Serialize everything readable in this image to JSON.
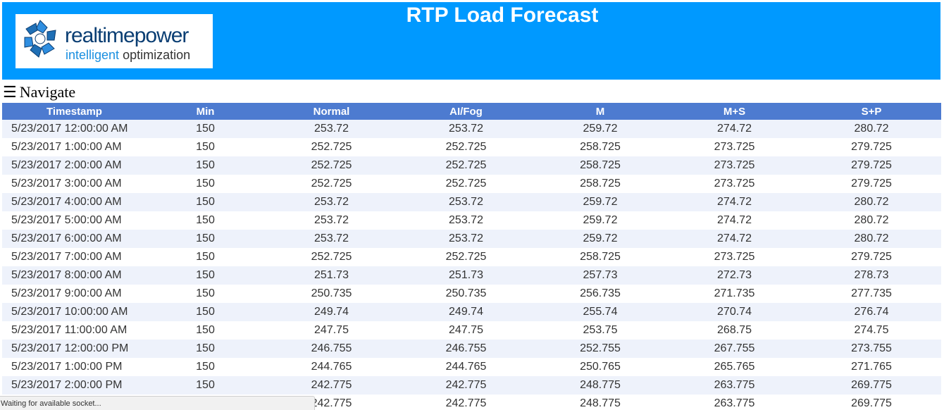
{
  "header": {
    "title": "RTP Load Forecast",
    "background_color": "#0099ff",
    "logo": {
      "wordmark": "realtimepower",
      "tagline_accent": "intelligent",
      "tagline_rest": "optimization"
    }
  },
  "nav": {
    "icon": "☰",
    "label": "Navigate"
  },
  "table": {
    "header_color": "#4d7bd0",
    "columns": [
      "Timestamp",
      "Min",
      "Normal",
      "AI/Fog",
      "M",
      "M+S",
      "S+P"
    ],
    "rows": [
      [
        "5/23/2017 12:00:00 AM",
        "150",
        "253.72",
        "253.72",
        "259.72",
        "274.72",
        "280.72"
      ],
      [
        "5/23/2017 1:00:00 AM",
        "150",
        "252.725",
        "252.725",
        "258.725",
        "273.725",
        "279.725"
      ],
      [
        "5/23/2017 2:00:00 AM",
        "150",
        "252.725",
        "252.725",
        "258.725",
        "273.725",
        "279.725"
      ],
      [
        "5/23/2017 3:00:00 AM",
        "150",
        "252.725",
        "252.725",
        "258.725",
        "273.725",
        "279.725"
      ],
      [
        "5/23/2017 4:00:00 AM",
        "150",
        "253.72",
        "253.72",
        "259.72",
        "274.72",
        "280.72"
      ],
      [
        "5/23/2017 5:00:00 AM",
        "150",
        "253.72",
        "253.72",
        "259.72",
        "274.72",
        "280.72"
      ],
      [
        "5/23/2017 6:00:00 AM",
        "150",
        "253.72",
        "253.72",
        "259.72",
        "274.72",
        "280.72"
      ],
      [
        "5/23/2017 7:00:00 AM",
        "150",
        "252.725",
        "252.725",
        "258.725",
        "273.725",
        "279.725"
      ],
      [
        "5/23/2017 8:00:00 AM",
        "150",
        "251.73",
        "251.73",
        "257.73",
        "272.73",
        "278.73"
      ],
      [
        "5/23/2017 9:00:00 AM",
        "150",
        "250.735",
        "250.735",
        "256.735",
        "271.735",
        "277.735"
      ],
      [
        "5/23/2017 10:00:00 AM",
        "150",
        "249.74",
        "249.74",
        "255.74",
        "270.74",
        "276.74"
      ],
      [
        "5/23/2017 11:00:00 AM",
        "150",
        "247.75",
        "247.75",
        "253.75",
        "268.75",
        "274.75"
      ],
      [
        "5/23/2017 12:00:00 PM",
        "150",
        "246.755",
        "246.755",
        "252.755",
        "267.755",
        "273.755"
      ],
      [
        "5/23/2017 1:00:00 PM",
        "150",
        "244.765",
        "244.765",
        "250.765",
        "265.765",
        "271.765"
      ],
      [
        "5/23/2017 2:00:00 PM",
        "150",
        "242.775",
        "242.775",
        "248.775",
        "263.775",
        "269.775"
      ],
      [
        "",
        "",
        "242.775",
        "242.775",
        "248.775",
        "263.775",
        "269.775"
      ]
    ]
  },
  "status_bar": {
    "text": "Waiting for available socket..."
  }
}
